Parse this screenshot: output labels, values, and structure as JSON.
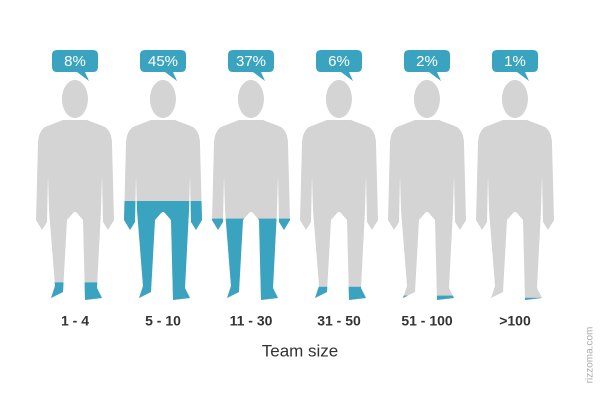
{
  "chart_data": {
    "type": "pictogram",
    "x_label": "Team size",
    "watermark": "rizzoma.com",
    "categories": [
      "1 - 4",
      "5 - 10",
      "11 - 30",
      "31 - 50",
      "51 - 100",
      ">100"
    ],
    "values": [
      8,
      45,
      37,
      6,
      2,
      1
    ],
    "value_labels": [
      "8%",
      "45%",
      "37%",
      "6%",
      "2%",
      "1%"
    ],
    "ylim": [
      0,
      100
    ],
    "color": "#3aa3bf",
    "base_color": "#d4d4d4"
  }
}
